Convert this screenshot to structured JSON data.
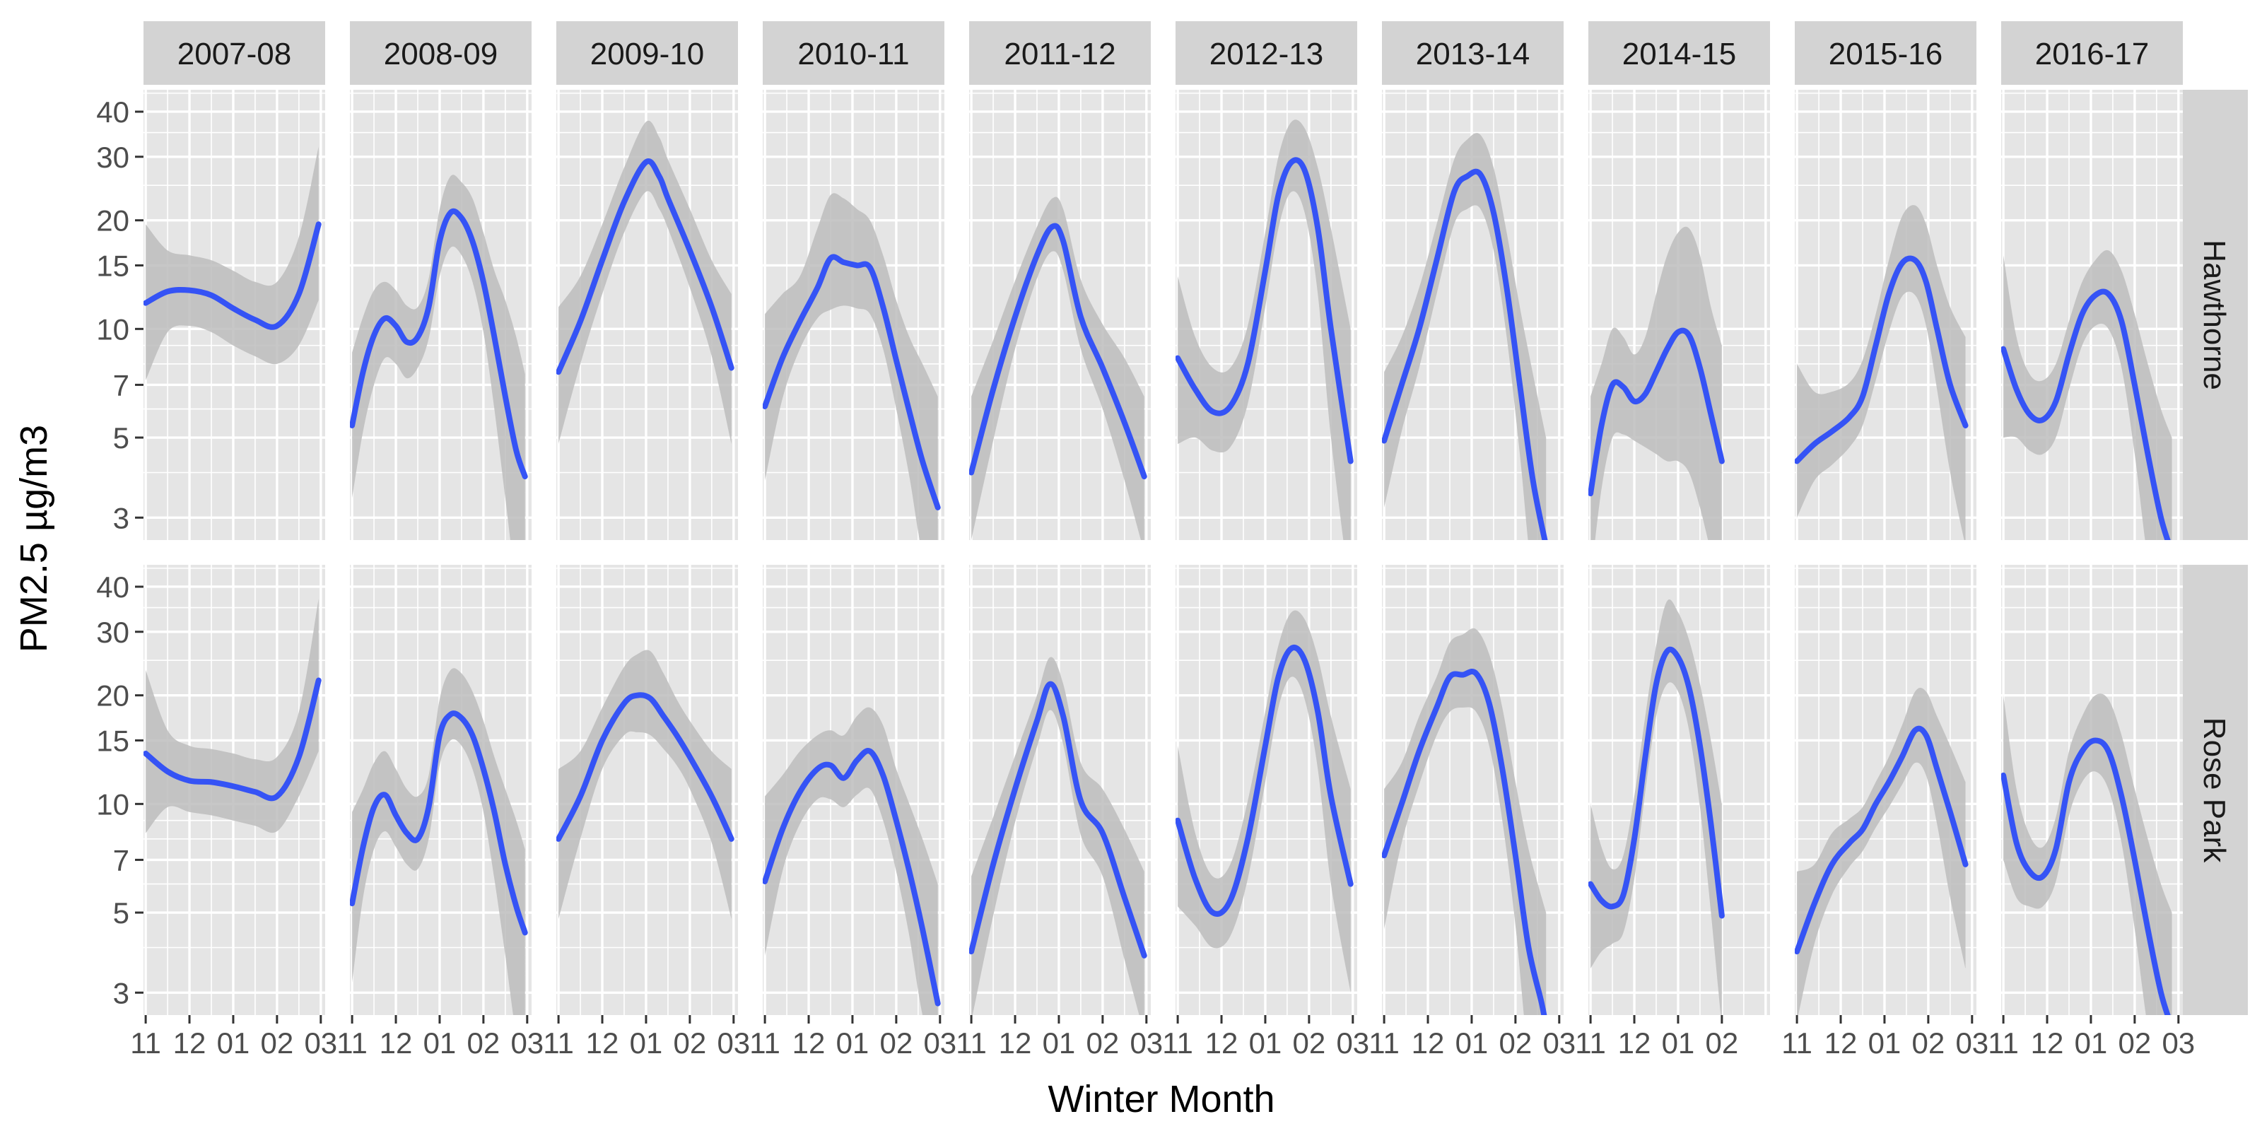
{
  "chart_data": {
    "type": "line",
    "facet_columns": [
      "2007-08",
      "2008-09",
      "2009-10",
      "2010-11",
      "2011-12",
      "2012-13",
      "2013-14",
      "2014-15",
      "2015-16",
      "2016-17"
    ],
    "facet_rows": [
      "Hawthorne",
      "Rose Park"
    ],
    "xlabel": "Winter Month",
    "ylabel": "PM2.5 µg/m3",
    "x_tick_labels": [
      "11",
      "12",
      "01",
      "02",
      "03"
    ],
    "x_tick_labels_2014_15": [
      "11",
      "12",
      "01",
      "02"
    ],
    "y_scale": "log",
    "y_ticks": [
      3,
      5,
      7,
      10,
      15,
      20,
      30,
      40
    ],
    "ylim": [
      2.6,
      46
    ],
    "xlim_months_from_nov1": [
      -0.05,
      4.1
    ],
    "grid": true,
    "line_color": "#3553f5",
    "ribbon_color": "#bdbdbd",
    "panel_background": "#e5e5e5",
    "strip_background": "#d3d3d3",
    "panels": [
      {
        "row": "Hawthorne",
        "col": "2007-08",
        "x": [
          0,
          0.5,
          1,
          1.5,
          2,
          2.5,
          3,
          3.5,
          3.95
        ],
        "y": [
          11.8,
          12.7,
          12.8,
          12.4,
          11.4,
          10.6,
          10.2,
          12.5,
          19.5
        ],
        "lo": [
          7.2,
          9.8,
          10.2,
          9.8,
          9.0,
          8.4,
          8.0,
          9.0,
          12.0
        ],
        "hi": [
          19.5,
          16.5,
          16.0,
          15.5,
          14.5,
          13.5,
          13.5,
          18.0,
          32.0
        ]
      },
      {
        "row": "Hawthorne",
        "col": "2008-09",
        "x": [
          0,
          0.25,
          0.5,
          0.75,
          1.0,
          1.25,
          1.5,
          1.75,
          2.0,
          2.25,
          2.5,
          2.75,
          3.0,
          3.25,
          3.5,
          3.75,
          3.95
        ],
        "y": [
          5.4,
          7.6,
          9.6,
          10.7,
          10.2,
          9.2,
          9.5,
          11.5,
          17.5,
          21.0,
          20.3,
          17.5,
          13.5,
          9.5,
          6.5,
          4.6,
          3.9
        ],
        "lo": [
          3.4,
          5.2,
          7.0,
          8.3,
          8.0,
          7.3,
          7.8,
          9.4,
          14.0,
          16.8,
          16.0,
          13.5,
          9.8,
          6.0,
          3.4,
          2.0,
          2.0
        ],
        "hi": [
          8.6,
          10.8,
          12.8,
          13.5,
          12.8,
          11.6,
          11.5,
          13.8,
          21.5,
          26.5,
          25.5,
          23.0,
          18.5,
          14.5,
          12.0,
          9.5,
          7.5
        ]
      },
      {
        "row": "Hawthorne",
        "col": "2009-10",
        "x": [
          0,
          0.5,
          1,
          1.5,
          2,
          2.3,
          2.5,
          3,
          3.5,
          3.95
        ],
        "y": [
          7.6,
          10.5,
          15.5,
          22.5,
          29.0,
          26.5,
          23.0,
          16.5,
          11.5,
          7.8
        ],
        "lo": [
          4.8,
          8.0,
          12.5,
          18.5,
          24.0,
          21.5,
          19.0,
          13.0,
          8.4,
          4.8
        ],
        "hi": [
          11.5,
          14.0,
          19.5,
          28.0,
          37.5,
          34.0,
          29.5,
          21.5,
          15.5,
          12.5
        ]
      },
      {
        "row": "Hawthorne",
        "col": "2010-11",
        "x": [
          0,
          0.4,
          0.8,
          1.2,
          1.5,
          1.8,
          2.1,
          2.4,
          2.7,
          3.0,
          3.3,
          3.6,
          3.95
        ],
        "y": [
          6.1,
          8.3,
          10.5,
          13.0,
          15.7,
          15.3,
          15.0,
          14.8,
          11.5,
          8.2,
          5.9,
          4.3,
          3.2
        ],
        "lo": [
          3.8,
          6.4,
          8.8,
          10.7,
          11.3,
          11.6,
          11.4,
          11.0,
          8.8,
          6.0,
          3.9,
          2.4,
          2.0
        ],
        "hi": [
          11.0,
          12.5,
          14.0,
          19.0,
          23.5,
          23.0,
          21.5,
          20.0,
          16.0,
          12.0,
          9.5,
          8.0,
          6.5
        ]
      },
      {
        "row": "Hawthorne",
        "col": "2011-12",
        "x": [
          0,
          0.5,
          1,
          1.5,
          1.85,
          2.1,
          2.5,
          3.0,
          3.5,
          3.95
        ],
        "y": [
          4.0,
          6.8,
          10.8,
          16.0,
          19.2,
          17.5,
          10.8,
          7.8,
          5.5,
          3.9
        ],
        "lo": [
          2.6,
          4.9,
          8.8,
          13.8,
          16.4,
          14.5,
          8.8,
          6.0,
          3.8,
          2.4
        ],
        "hi": [
          6.5,
          9.3,
          13.6,
          19.2,
          23.0,
          21.5,
          13.7,
          10.3,
          8.3,
          6.5
        ]
      },
      {
        "row": "Hawthorne",
        "col": "2012-13",
        "x": [
          0,
          0.4,
          0.8,
          1.2,
          1.6,
          2.0,
          2.3,
          2.6,
          2.9,
          3.2,
          3.5,
          3.95
        ],
        "y": [
          8.3,
          6.8,
          5.9,
          6.1,
          8.0,
          14.5,
          23.5,
          29.0,
          27.5,
          19.0,
          10.0,
          4.3
        ],
        "lo": [
          4.8,
          5.0,
          4.6,
          4.7,
          6.2,
          11.5,
          19.0,
          24.0,
          21.0,
          12.5,
          5.0,
          1.8
        ],
        "hi": [
          14.0,
          9.5,
          7.8,
          7.8,
          10.2,
          18.5,
          30.0,
          37.5,
          36.0,
          28.0,
          19.0,
          10.0
        ]
      },
      {
        "row": "Hawthorne",
        "col": "2013-14",
        "x": [
          0,
          0.4,
          0.8,
          1.2,
          1.6,
          1.9,
          2.2,
          2.5,
          2.8,
          3.1,
          3.4,
          3.7
        ],
        "y": [
          4.9,
          7.0,
          10.0,
          15.5,
          24.0,
          26.5,
          26.8,
          21.0,
          13.0,
          7.0,
          3.8,
          2.5
        ],
        "lo": [
          3.2,
          5.2,
          7.8,
          12.5,
          19.5,
          21.5,
          21.5,
          16.5,
          9.5,
          4.5,
          2.0,
          1.8
        ],
        "hi": [
          7.6,
          9.5,
          13.0,
          19.5,
          29.5,
          33.5,
          34.5,
          28.0,
          18.5,
          11.5,
          7.5,
          5.0
        ]
      },
      {
        "row": "Hawthorne",
        "col": "2014-15",
        "x": [
          0,
          0.25,
          0.5,
          0.75,
          1.0,
          1.25,
          1.5,
          1.75,
          2.0,
          2.25,
          2.5,
          2.75,
          3.0
        ],
        "y": [
          3.5,
          5.4,
          7.0,
          6.9,
          6.3,
          6.6,
          7.6,
          8.8,
          9.8,
          9.6,
          7.8,
          5.8,
          4.3
        ],
        "lo": [
          2.0,
          3.6,
          5.0,
          5.1,
          4.9,
          4.7,
          4.5,
          4.3,
          4.3,
          4.0,
          3.2,
          2.4,
          1.8
        ],
        "hi": [
          6.5,
          8.0,
          10.0,
          9.5,
          8.5,
          9.5,
          12.5,
          16.0,
          18.5,
          19.0,
          16.0,
          11.5,
          9.0
        ]
      },
      {
        "row": "Hawthorne",
        "col": "2015-16",
        "x": [
          0,
          0.4,
          0.8,
          1.2,
          1.5,
          1.8,
          2.1,
          2.4,
          2.7,
          2.95,
          3.2,
          3.5,
          3.85
        ],
        "y": [
          4.3,
          4.8,
          5.2,
          5.7,
          6.5,
          9.0,
          12.5,
          15.2,
          15.5,
          13.5,
          10.0,
          7.0,
          5.4
        ],
        "lo": [
          3.0,
          3.8,
          4.2,
          4.7,
          5.4,
          7.2,
          9.8,
          12.3,
          12.4,
          10.2,
          6.8,
          4.0,
          2.5
        ],
        "hi": [
          8.0,
          6.7,
          6.7,
          7.1,
          8.2,
          11.0,
          15.5,
          20.5,
          22.0,
          19.5,
          15.0,
          11.5,
          9.5
        ]
      },
      {
        "row": "Hawthorne",
        "col": "2016-17",
        "x": [
          0,
          0.3,
          0.6,
          0.9,
          1.2,
          1.5,
          1.8,
          2.1,
          2.4,
          2.7,
          3.0,
          3.3,
          3.6,
          3.85
        ],
        "y": [
          8.8,
          6.8,
          5.8,
          5.6,
          6.3,
          8.5,
          11.0,
          12.4,
          12.5,
          10.5,
          7.0,
          4.5,
          3.0,
          2.4
        ],
        "lo": [
          5.0,
          5.0,
          4.6,
          4.5,
          5.0,
          6.8,
          9.0,
          10.2,
          10.0,
          7.8,
          4.5,
          2.3,
          1.6,
          1.5
        ],
        "hi": [
          16.0,
          9.5,
          7.5,
          7.2,
          8.0,
          10.5,
          13.5,
          15.5,
          16.5,
          14.5,
          11.0,
          8.0,
          6.0,
          5.0
        ]
      },
      {
        "row": "Rose Park",
        "col": "2007-08",
        "x": [
          0,
          0.5,
          1,
          1.5,
          2,
          2.5,
          3,
          3.5,
          3.95
        ],
        "y": [
          13.8,
          12.3,
          11.6,
          11.5,
          11.2,
          10.8,
          10.5,
          13.5,
          22.0
        ],
        "lo": [
          8.3,
          9.8,
          9.5,
          9.3,
          9.0,
          8.7,
          8.4,
          10.5,
          14.0
        ],
        "hi": [
          23.5,
          16.0,
          14.5,
          14.2,
          13.8,
          13.3,
          13.5,
          18.0,
          37.0
        ]
      },
      {
        "row": "Rose Park",
        "col": "2008-09",
        "x": [
          0,
          0.25,
          0.5,
          0.75,
          1.0,
          1.25,
          1.5,
          1.75,
          2.0,
          2.25,
          2.5,
          2.75,
          3.0,
          3.25,
          3.5,
          3.75,
          3.95
        ],
        "y": [
          5.3,
          7.6,
          9.8,
          10.6,
          9.3,
          8.3,
          8.0,
          9.8,
          15.5,
          17.7,
          17.3,
          15.5,
          12.5,
          9.5,
          6.8,
          5.2,
          4.4
        ],
        "lo": [
          3.2,
          5.5,
          7.5,
          8.4,
          7.6,
          6.8,
          6.6,
          8.0,
          12.8,
          15.0,
          14.5,
          12.5,
          9.5,
          6.2,
          3.8,
          2.3,
          2.0
        ],
        "hi": [
          9.5,
          11.0,
          13.0,
          14.0,
          12.5,
          11.0,
          10.5,
          12.0,
          19.5,
          23.5,
          23.0,
          20.5,
          17.0,
          13.5,
          11.0,
          9.0,
          7.5
        ]
      },
      {
        "row": "Rose Park",
        "col": "2009-10",
        "x": [
          0,
          0.5,
          1,
          1.5,
          1.8,
          2.1,
          2.4,
          2.7,
          3.0,
          3.5,
          3.95
        ],
        "y": [
          8.0,
          10.5,
          15.0,
          19.0,
          20.0,
          19.6,
          17.5,
          15.5,
          13.5,
          10.5,
          8.0
        ],
        "lo": [
          4.8,
          8.0,
          12.5,
          15.5,
          15.8,
          15.5,
          14.2,
          12.8,
          11.0,
          7.8,
          4.8
        ],
        "hi": [
          12.5,
          14.0,
          18.5,
          24.0,
          26.0,
          26.5,
          23.0,
          19.5,
          17.0,
          14.0,
          12.5
        ]
      },
      {
        "row": "Rose Park",
        "col": "2010-11",
        "x": [
          0,
          0.4,
          0.8,
          1.2,
          1.5,
          1.8,
          2.1,
          2.4,
          2.7,
          3.0,
          3.3,
          3.6,
          3.95
        ],
        "y": [
          6.1,
          8.5,
          10.8,
          12.5,
          12.8,
          11.8,
          13.2,
          14.0,
          12.0,
          9.0,
          6.5,
          4.5,
          2.8
        ],
        "lo": [
          3.8,
          6.5,
          8.8,
          10.3,
          10.3,
          9.8,
          10.6,
          11.0,
          9.0,
          6.5,
          4.3,
          2.6,
          1.8
        ],
        "hi": [
          10.5,
          12.0,
          14.0,
          15.5,
          16.0,
          15.5,
          17.5,
          18.5,
          16.5,
          12.5,
          10.0,
          8.0,
          6.0
        ]
      },
      {
        "row": "Rose Park",
        "col": "2011-12",
        "x": [
          0,
          0.5,
          1,
          1.5,
          1.8,
          2.1,
          2.5,
          3.0,
          3.5,
          3.95
        ],
        "y": [
          3.9,
          6.8,
          11.0,
          17.0,
          21.5,
          17.5,
          10.2,
          8.3,
          5.5,
          3.8
        ],
        "lo": [
          2.5,
          4.9,
          8.9,
          14.4,
          18.2,
          14.6,
          8.2,
          6.3,
          3.7,
          2.3
        ],
        "hi": [
          6.3,
          9.2,
          13.6,
          20.0,
          25.5,
          21.5,
          13.0,
          11.0,
          8.5,
          6.5
        ]
      },
      {
        "row": "Rose Park",
        "col": "2012-13",
        "x": [
          0,
          0.4,
          0.8,
          1.2,
          1.6,
          2.0,
          2.3,
          2.6,
          2.9,
          3.2,
          3.5,
          3.95
        ],
        "y": [
          9.0,
          6.2,
          5.0,
          5.4,
          8.0,
          14.5,
          22.5,
          27.0,
          25.0,
          18.0,
          10.5,
          6.0
        ],
        "lo": [
          5.2,
          4.6,
          4.0,
          4.3,
          6.2,
          11.5,
          18.5,
          22.5,
          19.5,
          12.5,
          6.0,
          3.0
        ],
        "hi": [
          14.5,
          8.3,
          6.3,
          6.8,
          10.2,
          18.0,
          27.5,
          34.0,
          32.5,
          25.5,
          17.5,
          11.0
        ]
      },
      {
        "row": "Rose Park",
        "col": "2013-14",
        "x": [
          0,
          0.4,
          0.8,
          1.2,
          1.5,
          1.8,
          2.1,
          2.4,
          2.7,
          3.0,
          3.3,
          3.6,
          3.7
        ],
        "y": [
          7.2,
          10.0,
          14.0,
          18.5,
          22.5,
          22.8,
          23.0,
          19.0,
          12.5,
          7.2,
          4.0,
          2.8,
          2.4
        ],
        "lo": [
          4.5,
          7.8,
          11.3,
          15.5,
          18.0,
          18.5,
          18.0,
          14.5,
          9.0,
          4.6,
          2.0,
          1.6,
          1.5
        ],
        "hi": [
          11.0,
          13.0,
          17.5,
          22.5,
          28.0,
          29.5,
          30.5,
          26.0,
          18.5,
          11.5,
          7.5,
          5.5,
          5.0
        ]
      },
      {
        "row": "Rose Park",
        "col": "2014-15",
        "x": [
          0,
          0.25,
          0.5,
          0.75,
          1.0,
          1.25,
          1.5,
          1.75,
          2.0,
          2.25,
          2.5,
          2.75,
          3.0
        ],
        "y": [
          6.0,
          5.4,
          5.2,
          5.6,
          8.0,
          13.5,
          21.5,
          26.5,
          25.5,
          21.0,
          14.5,
          8.8,
          4.9
        ],
        "lo": [
          3.5,
          3.9,
          4.1,
          4.4,
          6.2,
          10.8,
          17.5,
          21.5,
          20.5,
          16.0,
          9.8,
          5.0,
          2.4
        ],
        "hi": [
          10.0,
          7.6,
          6.6,
          7.2,
          10.5,
          17.5,
          27.5,
          36.5,
          34.0,
          28.5,
          21.5,
          15.0,
          10.0
        ]
      },
      {
        "row": "Rose Park",
        "col": "2015-16",
        "x": [
          0,
          0.4,
          0.8,
          1.2,
          1.5,
          1.8,
          2.1,
          2.4,
          2.7,
          2.95,
          3.2,
          3.5,
          3.85
        ],
        "y": [
          3.9,
          5.3,
          6.8,
          7.8,
          8.5,
          10.0,
          11.5,
          13.5,
          16.0,
          15.5,
          12.5,
          9.5,
          6.8
        ],
        "lo": [
          2.5,
          4.1,
          5.6,
          6.7,
          7.4,
          8.6,
          9.8,
          11.3,
          13.0,
          12.0,
          8.8,
          5.5,
          3.5
        ],
        "hi": [
          6.5,
          6.8,
          8.3,
          9.1,
          9.8,
          11.5,
          13.5,
          16.5,
          20.5,
          20.5,
          17.5,
          14.5,
          11.5
        ]
      },
      {
        "row": "Rose Park",
        "col": "2016-17",
        "x": [
          0,
          0.3,
          0.6,
          0.9,
          1.2,
          1.5,
          1.8,
          2.1,
          2.4,
          2.7,
          3.0,
          3.3,
          3.6,
          3.85
        ],
        "y": [
          12.0,
          7.8,
          6.5,
          6.3,
          7.5,
          11.5,
          14.0,
          15.0,
          14.0,
          10.5,
          7.0,
          4.5,
          3.0,
          2.4
        ],
        "lo": [
          7.0,
          5.5,
          5.2,
          5.2,
          6.1,
          9.3,
          11.5,
          12.3,
          11.0,
          7.8,
          4.5,
          2.4,
          1.6,
          1.5
        ],
        "hi": [
          20.0,
          11.0,
          8.2,
          7.6,
          9.2,
          14.0,
          17.5,
          20.0,
          19.5,
          15.5,
          11.0,
          8.0,
          6.0,
          5.0
        ]
      }
    ]
  }
}
